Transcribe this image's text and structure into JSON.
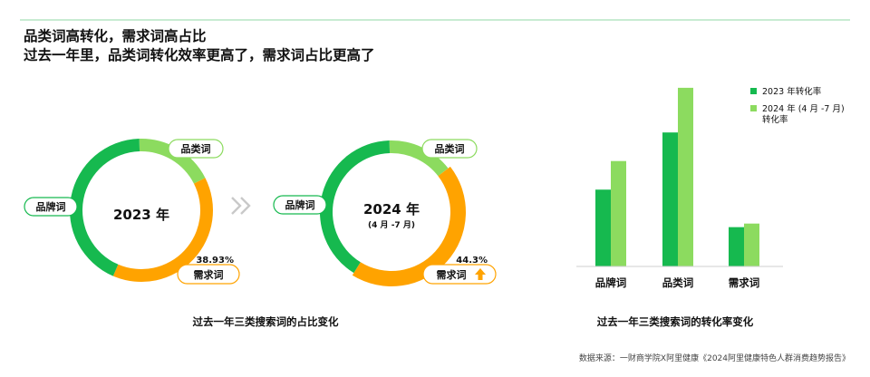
{
  "header": {
    "line1": "品类词高转化，需求词高占比",
    "line2": "过去一年里，品类词转化效率更高了，需求词占比更高了"
  },
  "colors": {
    "green": "#16b94f",
    "light_green": "#8cdb5f",
    "orange": "#ffa300",
    "arrow_icon": "arrow-up-icon"
  },
  "chart_data": [
    {
      "type": "pie",
      "style": "donut",
      "title": "过去一年三类搜索词的占比变化",
      "donuts": [
        {
          "center_title": "2023 年",
          "center_subtitle": "",
          "slices": [
            {
              "name": "品牌词",
              "value": 43.07
            },
            {
              "name": "品类词",
              "value": 18.0
            },
            {
              "name": "需求词",
              "value": 38.93
            }
          ],
          "value_label": "38.93%",
          "labels": {
            "brand": "品牌词",
            "category": "品类词",
            "need": "需求词"
          },
          "need_trend": ""
        },
        {
          "center_title": "2024 年",
          "center_subtitle": "(4 月 -7 月)",
          "slices": [
            {
              "name": "品牌词",
              "value": 40.7
            },
            {
              "name": "品类词",
              "value": 15.0
            },
            {
              "name": "需求词",
              "value": 44.3
            }
          ],
          "value_label": "44.3%",
          "labels": {
            "brand": "品牌词",
            "category": "品类词",
            "need": "需求词"
          },
          "need_trend": "up"
        }
      ],
      "separator_icon": "double-chevron-right-icon"
    },
    {
      "type": "bar",
      "title": "过去一年三类搜索词的转化率变化",
      "categories": [
        "品牌词",
        "品类词",
        "需求词"
      ],
      "series": [
        {
          "name": "2023 年转化率",
          "values": [
            4.3,
            7.5,
            2.2
          ]
        },
        {
          "name": "2024 年 (4 月 -7 月)\n转化率",
          "values": [
            5.9,
            10.0,
            2.4
          ]
        }
      ],
      "ylim": [
        0,
        10.4
      ],
      "axes_visible": false,
      "grid": false,
      "legend_position": "top-right",
      "xlabel": "",
      "ylabel": ""
    }
  ],
  "footer": {
    "source": "数据来源：一财商学院X阿里健康《2024阿里健康特色人群消费趋势报告》"
  }
}
